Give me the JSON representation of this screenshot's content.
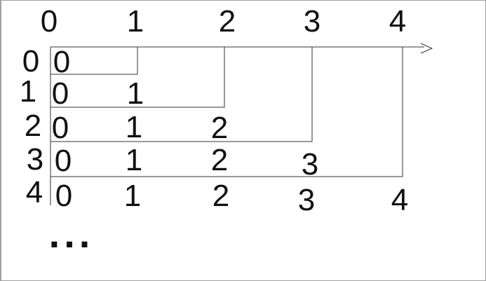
{
  "column_labels": [
    "0",
    "1",
    "2",
    "3",
    "4"
  ],
  "row_labels": [
    "0",
    "1",
    "2",
    "3",
    "4"
  ],
  "rows": [
    [
      "0"
    ],
    [
      "0",
      "1"
    ],
    [
      "0",
      "1",
      "2"
    ],
    [
      "0",
      "1",
      "2",
      "3"
    ],
    [
      "0",
      "1",
      "2",
      "3",
      "4"
    ]
  ],
  "axis_arrow": ">",
  "ellipsis": "..."
}
